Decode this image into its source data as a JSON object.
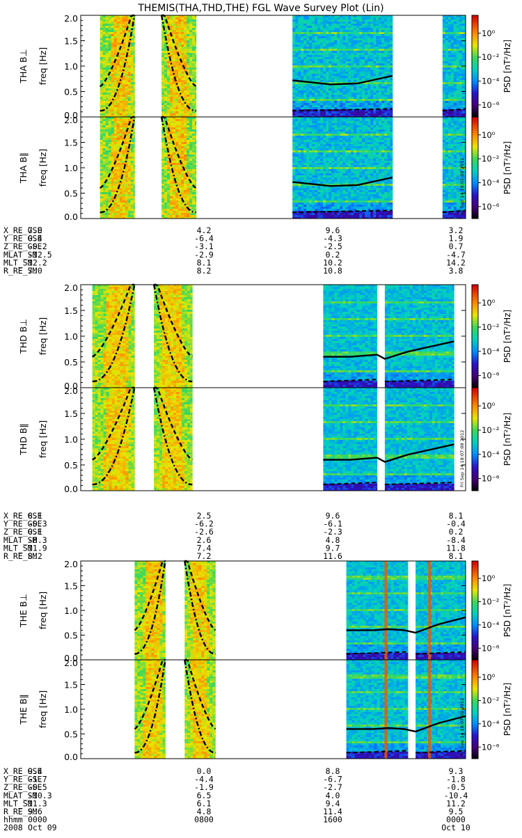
{
  "title": "THEMIS(THA,THD,THE) FGL Wave Survey Plot (Lin)",
  "chart_data": {
    "type": "heatmap",
    "y_ticks": [
      "0.0",
      "0.5",
      "1.0",
      "1.5",
      "2.0"
    ],
    "ylim": [
      0,
      2.0
    ],
    "colorbar": {
      "label": "PSD [nT²/Hz]",
      "tick_labels": [
        "10⁰",
        "10⁻²",
        "10⁻⁴",
        "10⁻⁶"
      ],
      "tick_values": [
        0,
        -2,
        -4,
        -6
      ],
      "range_log10": [
        -7,
        1.5
      ],
      "scale": "log"
    },
    "stamp": "Fri Sep 14 18:07:08 2012",
    "panels": [
      {
        "label": "THA B⊥",
        "ylabel": "freq [Hz]",
        "segments": [
          [
            0.05,
            0.14
          ],
          [
            0.21,
            0.3
          ],
          [
            0.55,
            0.81
          ],
          [
            0.94,
            1.0
          ]
        ],
        "line": [
          [
            0.55,
            0.72
          ],
          [
            0.65,
            0.64
          ],
          [
            0.72,
            0.66
          ],
          [
            0.78,
            0.76
          ],
          [
            0.81,
            0.81
          ]
        ],
        "noise": "high"
      },
      {
        "label": "THA B∥",
        "ylabel": "freq [Hz]",
        "segments": [
          [
            0.05,
            0.14
          ],
          [
            0.21,
            0.3
          ],
          [
            0.55,
            0.81
          ],
          [
            0.94,
            1.0
          ]
        ],
        "line": [
          [
            0.55,
            0.72
          ],
          [
            0.65,
            0.64
          ],
          [
            0.72,
            0.66
          ],
          [
            0.78,
            0.76
          ],
          [
            0.81,
            0.81
          ]
        ],
        "noise": "high"
      },
      {
        "label": "THD B⊥",
        "ylabel": "freq [Hz]",
        "segments": [
          [
            0.03,
            0.14
          ],
          [
            0.19,
            0.29
          ],
          [
            0.63,
            0.77
          ],
          [
            0.79,
            0.97
          ]
        ],
        "line": [
          [
            0.63,
            0.6
          ],
          [
            0.7,
            0.6
          ],
          [
            0.77,
            0.64
          ],
          [
            0.79,
            0.56
          ],
          [
            0.85,
            0.7
          ],
          [
            0.97,
            0.9
          ]
        ],
        "noise": "mid"
      },
      {
        "label": "THD B∥",
        "ylabel": "freq [Hz]",
        "segments": [
          [
            0.03,
            0.14
          ],
          [
            0.19,
            0.29
          ],
          [
            0.63,
            0.77
          ],
          [
            0.79,
            0.97
          ]
        ],
        "line": [
          [
            0.63,
            0.6
          ],
          [
            0.7,
            0.6
          ],
          [
            0.77,
            0.64
          ],
          [
            0.79,
            0.56
          ],
          [
            0.85,
            0.7
          ],
          [
            0.97,
            0.9
          ]
        ],
        "noise": "mid"
      },
      {
        "label": "THE B⊥",
        "ylabel": "freq [Hz]",
        "segments": [
          [
            0.14,
            0.22
          ],
          [
            0.27,
            0.35
          ],
          [
            0.69,
            0.85
          ],
          [
            0.87,
            1.0
          ]
        ],
        "line": [
          [
            0.69,
            0.6
          ],
          [
            0.76,
            0.6
          ],
          [
            0.8,
            0.62
          ],
          [
            0.84,
            0.6
          ],
          [
            0.87,
            0.55
          ],
          [
            0.93,
            0.72
          ],
          [
            1.0,
            0.86
          ]
        ],
        "noise": "low"
      },
      {
        "label": "THE B∥",
        "ylabel": "freq [Hz]",
        "segments": [
          [
            0.14,
            0.22
          ],
          [
            0.27,
            0.35
          ],
          [
            0.69,
            0.85
          ],
          [
            0.87,
            1.0
          ]
        ],
        "line": [
          [
            0.69,
            0.6
          ],
          [
            0.76,
            0.6
          ],
          [
            0.8,
            0.62
          ],
          [
            0.84,
            0.6
          ],
          [
            0.87,
            0.55
          ],
          [
            0.93,
            0.72
          ],
          [
            1.0,
            0.86
          ]
        ],
        "noise": "low"
      }
    ],
    "ephemeris": [
      {
        "rows": [
          {
            "name": "X_RE_GSE",
            "values": [
              "7.0",
              "4.2",
              "9.6",
              "3.2"
            ]
          },
          {
            "name": "Y_RE_GSE",
            "values": [
              "0.4",
              "-6.4",
              "-4.3",
              "1.9"
            ]
          },
          {
            "name": "Z_RE_GSE",
            "values": [
              "-0.2",
              "-3.1",
              "-2.5",
              "0.7"
            ]
          },
          {
            "name": "MLAT_SM",
            "values": [
              "-12.5",
              "-2.9",
              "0.2",
              "-4.7"
            ]
          },
          {
            "name": "MLT_SM",
            "values": [
              "12.2",
              "8.1",
              "10.2",
              "14.2"
            ]
          },
          {
            "name": "R_RE_SM",
            "values": [
              "7.0",
              "8.2",
              "10.8",
              "3.8"
            ]
          }
        ]
      },
      {
        "rows": [
          {
            "name": "X_RE_GSE",
            "values": [
              "8.1",
              "2.5",
              "9.6",
              "8.1"
            ]
          },
          {
            "name": "Y_RE_GSE",
            "values": [
              "-0.3",
              "-6.2",
              "-6.1",
              "-0.4"
            ]
          },
          {
            "name": "Z_RE_GSE",
            "values": [
              "0.1",
              "-2.6",
              "-2.3",
              "0.2"
            ]
          },
          {
            "name": "MLAT_SM",
            "values": [
              "-8.3",
              "2.6",
              "4.8",
              "-8.4"
            ]
          },
          {
            "name": "MLT_SM",
            "values": [
              "11.9",
              "7.4",
              "9.7",
              "11.8"
            ]
          },
          {
            "name": "R_RE_SM",
            "values": [
              "8.2",
              "7.2",
              "11.6",
              "8.1"
            ]
          }
        ]
      },
      {
        "rows": [
          {
            "name": "X_RE_GSE",
            "values": [
              "9.4",
              "0.0",
              "8.8",
              "9.3"
            ]
          },
          {
            "name": "Y_RE_GSE",
            "values": [
              "-1.7",
              "-4.4",
              "-6.7",
              "-1.8"
            ]
          },
          {
            "name": "Z_RE_GSE",
            "values": [
              "-0.5",
              "-1.9",
              "-2.7",
              "-0.5"
            ]
          },
          {
            "name": "MLAT_SM",
            "values": [
              "-10.3",
              "6.5",
              "4.0",
              "-10.4"
            ]
          },
          {
            "name": "MLT_SM",
            "values": [
              "11.3",
              "6.1",
              "9.4",
              "11.2"
            ]
          },
          {
            "name": "R_RE_SM",
            "values": [
              "9.6",
              "4.8",
              "11.4",
              "9.5"
            ]
          },
          {
            "name": "hhmm",
            "values": [
              "0000",
              "0800",
              "1600",
              "0000"
            ]
          },
          {
            "name": "2008",
            "values": [
              "Oct 09",
              "",
              "",
              "Oct 10"
            ]
          }
        ]
      }
    ]
  }
}
